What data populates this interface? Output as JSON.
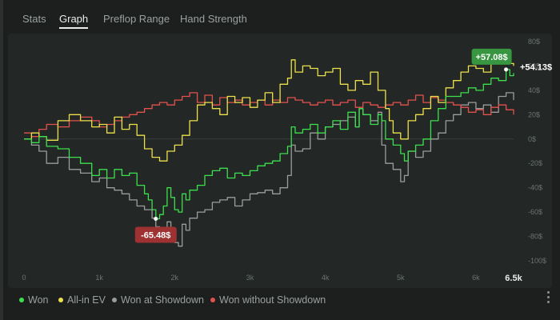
{
  "tabs": [
    {
      "label": "Stats",
      "active": false
    },
    {
      "label": "Graph",
      "active": true
    },
    {
      "label": "Preflop Range",
      "active": false
    },
    {
      "label": "Hand Strength",
      "active": false
    }
  ],
  "colors": {
    "won": "#3ce04c",
    "allin_ev": "#ece14a",
    "showdown": "#9a9d9c",
    "non_showdown": "#e3514d",
    "max_badge": "#37963f",
    "min_badge": "#9e3131"
  },
  "legend": [
    {
      "label": "Won",
      "color": "#3ce04c"
    },
    {
      "label": "All-in EV",
      "color": "#ece14a"
    },
    {
      "label": "Won at Showdown",
      "color": "#9a9d9c"
    },
    {
      "label": "Won without Showdown",
      "color": "#e3514d"
    }
  ],
  "chart_data": {
    "type": "line",
    "xlim": [
      0,
      6500
    ],
    "ylim": [
      -100,
      80
    ],
    "x_ticks": [
      "0",
      "1k",
      "2k",
      "3k",
      "4k",
      "5k",
      "6k"
    ],
    "x_tick_values": [
      0,
      1000,
      2000,
      3000,
      4000,
      5000,
      6000
    ],
    "x_end_label": "6.5k",
    "y_ticks": [
      "80$",
      "60$",
      "40$",
      "20$",
      "0$",
      "-20$",
      "-40$",
      "-60$",
      "-80$",
      "-100$"
    ],
    "y_tick_values": [
      80,
      60,
      40,
      20,
      0,
      -20,
      -40,
      -60,
      -80,
      -100
    ],
    "grid": "horizontal zero line",
    "series": [
      {
        "name": "Won",
        "key": "won",
        "x": [
          0,
          100,
          200,
          300,
          450,
          600,
          750,
          900,
          1000,
          1100,
          1200,
          1300,
          1400,
          1500,
          1600,
          1650,
          1700,
          1750,
          1800,
          1850,
          1900,
          1950,
          2000,
          2050,
          2100,
          2150,
          2200,
          2300,
          2400,
          2500,
          2600,
          2700,
          2800,
          2900,
          3000,
          3100,
          3200,
          3300,
          3400,
          3500,
          3550,
          3600,
          3700,
          3800,
          3900,
          4000,
          4100,
          4200,
          4300,
          4400,
          4450,
          4500,
          4600,
          4700,
          4750,
          4800,
          4900,
          5000,
          5050,
          5100,
          5200,
          5300,
          5400,
          5500,
          5600,
          5700,
          5800,
          5900,
          6000,
          6100,
          6200,
          6300,
          6400,
          6450,
          6500
        ],
        "y": [
          0,
          -3,
          2,
          -6,
          -8,
          -15,
          -20,
          -30,
          -25,
          -32,
          -25,
          -30,
          -28,
          -38,
          -45,
          -50,
          -58,
          -65.48,
          -62,
          -55,
          -40,
          -48,
          -58,
          -60,
          -45,
          -50,
          -42,
          -38,
          -30,
          -26,
          -24,
          -32,
          -28,
          -30,
          -26,
          -22,
          -20,
          -18,
          -12,
          -6,
          10,
          5,
          8,
          12,
          5,
          10,
          15,
          8,
          22,
          10,
          25,
          20,
          12,
          20,
          15,
          0,
          -5,
          -12,
          -18,
          -10,
          -5,
          0,
          15,
          25,
          35,
          35,
          38,
          42,
          40,
          45,
          50,
          48,
          57.08,
          52,
          54.13
        ]
      },
      {
        "name": "All-in EV",
        "key": "allin_ev",
        "x": [
          0,
          100,
          200,
          300,
          450,
          600,
          750,
          900,
          1000,
          1100,
          1200,
          1300,
          1400,
          1500,
          1600,
          1700,
          1800,
          1900,
          2000,
          2100,
          2200,
          2300,
          2400,
          2500,
          2600,
          2700,
          2800,
          2900,
          3000,
          3100,
          3200,
          3300,
          3400,
          3500,
          3550,
          3600,
          3700,
          3800,
          3900,
          4000,
          4100,
          4200,
          4300,
          4400,
          4500,
          4600,
          4700,
          4800,
          4850,
          4900,
          5000,
          5100,
          5200,
          5300,
          5400,
          5500,
          5600,
          5700,
          5800,
          5900,
          6000,
          6100,
          6200,
          6300,
          6400,
          6450,
          6500
        ],
        "y": [
          0,
          5,
          2,
          -1,
          15,
          20,
          15,
          10,
          12,
          5,
          18,
          8,
          12,
          3,
          -8,
          -15,
          -18,
          -10,
          -5,
          3,
          15,
          28,
          30,
          25,
          20,
          35,
          30,
          34,
          26,
          32,
          38,
          30,
          45,
          50,
          65,
          55,
          60,
          58,
          52,
          55,
          58,
          45,
          40,
          48,
          45,
          55,
          40,
          25,
          15,
          5,
          0,
          15,
          20,
          25,
          35,
          30,
          42,
          48,
          55,
          60,
          58,
          55,
          62,
          70,
          65,
          62,
          60
        ]
      },
      {
        "name": "Won at Showdown",
        "key": "showdown",
        "x": [
          0,
          100,
          200,
          300,
          450,
          600,
          750,
          900,
          1000,
          1100,
          1200,
          1300,
          1400,
          1500,
          1600,
          1700,
          1750,
          1800,
          1850,
          1900,
          1950,
          2000,
          2050,
          2100,
          2150,
          2200,
          2300,
          2400,
          2500,
          2600,
          2700,
          2800,
          2900,
          3000,
          3100,
          3200,
          3300,
          3400,
          3500,
          3550,
          3600,
          3700,
          3800,
          3900,
          4000,
          4100,
          4200,
          4300,
          4400,
          4450,
          4500,
          4600,
          4700,
          4750,
          4800,
          4900,
          5000,
          5050,
          5100,
          5200,
          5300,
          5400,
          5500,
          5600,
          5700,
          5800,
          5900,
          6000,
          6100,
          6200,
          6300,
          6400,
          6500
        ],
        "y": [
          0,
          -5,
          -10,
          -20,
          -15,
          -25,
          -28,
          -35,
          -32,
          -40,
          -42,
          -45,
          -50,
          -55,
          -58,
          -65,
          -72,
          -80,
          -75,
          -68,
          -80,
          -85,
          -88,
          -70,
          -75,
          -65,
          -60,
          -58,
          -52,
          -50,
          -48,
          -55,
          -50,
          -45,
          -44,
          -42,
          -45,
          -40,
          -30,
          -5,
          -10,
          -8,
          5,
          0,
          10,
          12,
          15,
          18,
          10,
          25,
          20,
          15,
          22,
          -5,
          -20,
          -25,
          -35,
          -30,
          -10,
          -15,
          -10,
          0,
          5,
          15,
          20,
          28,
          30,
          25,
          28,
          22,
          35,
          38,
          32
        ]
      },
      {
        "name": "Won without Showdown",
        "key": "non_showdown",
        "x": [
          0,
          100,
          200,
          300,
          450,
          600,
          750,
          900,
          1000,
          1100,
          1200,
          1300,
          1400,
          1500,
          1600,
          1700,
          1800,
          1900,
          2000,
          2100,
          2200,
          2300,
          2400,
          2500,
          2600,
          2700,
          2800,
          2900,
          3000,
          3100,
          3200,
          3300,
          3400,
          3500,
          3600,
          3700,
          3800,
          3900,
          4000,
          4100,
          4200,
          4300,
          4400,
          4500,
          4600,
          4700,
          4800,
          4900,
          5000,
          5100,
          5200,
          5300,
          5400,
          5500,
          5600,
          5700,
          5800,
          5900,
          6000,
          6100,
          6200,
          6300,
          6400,
          6500
        ],
        "y": [
          5,
          2,
          8,
          12,
          10,
          15,
          18,
          15,
          10,
          12,
          15,
          18,
          20,
          22,
          25,
          28,
          30,
          28,
          32,
          35,
          38,
          30,
          36,
          28,
          34,
          30,
          32,
          28,
          30,
          32,
          28,
          32,
          30,
          34,
          32,
          30,
          28,
          30,
          32,
          28,
          30,
          32,
          26,
          30,
          28,
          26,
          28,
          30,
          28,
          32,
          36,
          30,
          34,
          32,
          30,
          28,
          26,
          22,
          24,
          20,
          26,
          28,
          24,
          20
        ]
      }
    ],
    "annotations": [
      {
        "label": "+57.08$",
        "series": "won",
        "x": 6400,
        "y": 57.08,
        "style": "badge-max"
      },
      {
        "label": "+54.13$",
        "series": "won",
        "x": 6500,
        "y": 54.13,
        "style": "end-label"
      },
      {
        "label": "-65.48$",
        "series": "won",
        "x": 1750,
        "y": -65.48,
        "style": "badge-min"
      }
    ]
  }
}
